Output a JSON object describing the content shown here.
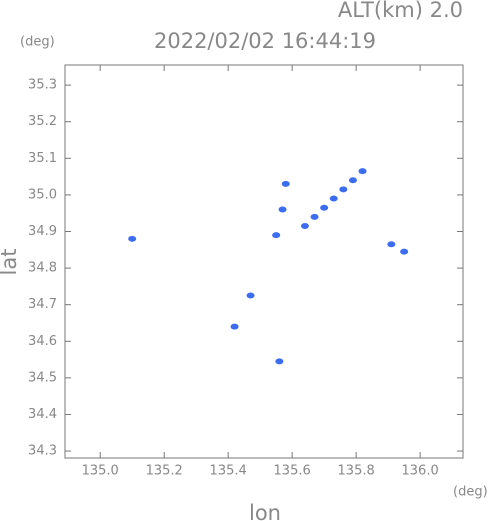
{
  "chart_data": {
    "type": "scatter",
    "title": "2022/02/02 16:44:19",
    "subtitle": "ALT(km) 2.0",
    "y_unit": "(deg)",
    "x_unit": "(deg)",
    "xlabel": "lon",
    "ylabel": "lat",
    "x": [
      135.1,
      135.55,
      135.57,
      135.58,
      135.64,
      135.67,
      135.7,
      135.73,
      135.76,
      135.79,
      135.82,
      135.91,
      135.95,
      135.47,
      135.42,
      135.56
    ],
    "values": [
      34.88,
      34.89,
      34.96,
      35.03,
      34.915,
      34.94,
      34.965,
      34.99,
      35.015,
      35.04,
      35.065,
      34.865,
      34.845,
      34.725,
      34.64,
      34.545
    ],
    "color": "#3c6df0",
    "xlim": [
      134.89,
      136.134
    ],
    "ylim": [
      34.281,
      35.355
    ],
    "xticks": [
      {
        "value": 135,
        "label": "135.0"
      },
      135.2,
      135.4,
      135.6,
      135.8,
      {
        "value": 136,
        "label": "136.0"
      }
    ],
    "yticks": [
      34.3,
      34.4,
      34.5,
      34.6,
      34.7,
      34.8,
      34.9,
      {
        "value": 35,
        "label": "35.0"
      },
      35.1,
      35.2,
      35.3
    ],
    "grid": false
  }
}
